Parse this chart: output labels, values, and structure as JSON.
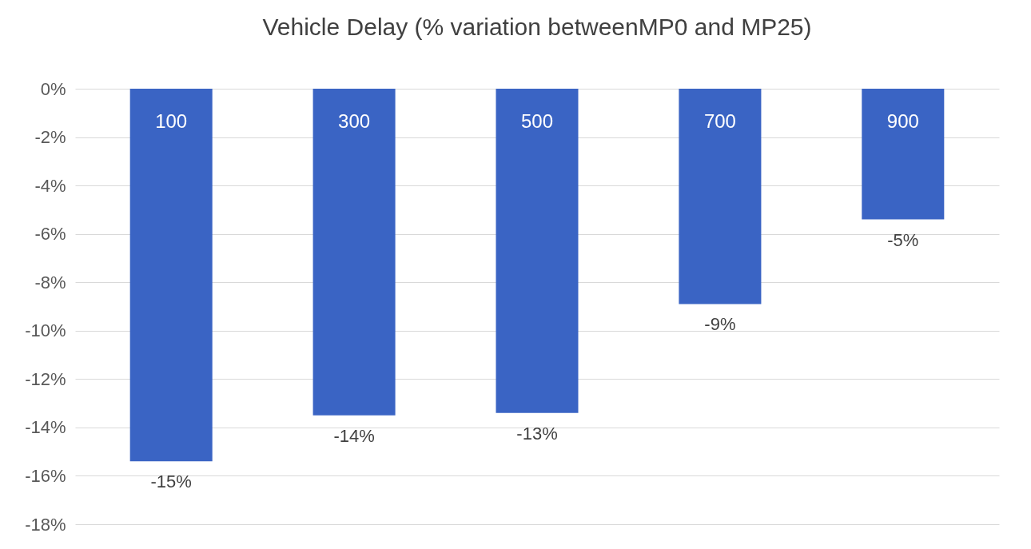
{
  "chart_data": {
    "type": "bar",
    "title": "Vehicle Delay (% variation betweenMP0 and MP25)",
    "categories": [
      "100",
      "300",
      "500",
      "700",
      "900"
    ],
    "values": [
      -15.4,
      -13.5,
      -13.4,
      -8.9,
      -5.4
    ],
    "value_labels": [
      "-15%",
      "-14%",
      "-13%",
      "-9%",
      "-5%"
    ],
    "color": "#3a64c4",
    "ylim": [
      -18,
      0
    ],
    "yticks": [
      {
        "value": 0,
        "label": "0%"
      },
      {
        "value": -2,
        "label": "-2%"
      },
      {
        "value": -4,
        "label": "-4%"
      },
      {
        "value": -6,
        "label": "-6%"
      },
      {
        "value": -8,
        "label": "-8%"
      },
      {
        "value": -10,
        "label": "-10%"
      },
      {
        "value": -12,
        "label": "-12%"
      },
      {
        "value": -14,
        "label": "-14%"
      },
      {
        "value": -16,
        "label": "-16%"
      },
      {
        "value": -18,
        "label": "-18%"
      }
    ],
    "grid": "y"
  }
}
